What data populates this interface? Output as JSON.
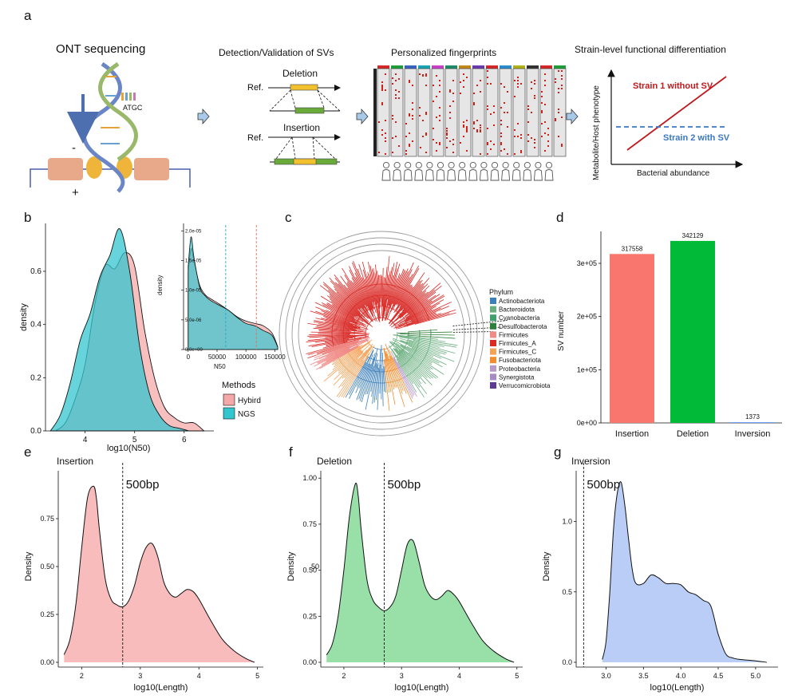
{
  "panel_labels": {
    "a": "a",
    "b": "b",
    "c": "c",
    "d": "d",
    "e": "e",
    "f": "f",
    "g": "g"
  },
  "panel_a": {
    "ont_title": "ONT sequencing",
    "atgc": "ATGC",
    "minus": "-",
    "plus": "+",
    "detect_title": "Detection/Validation of SVs",
    "deletion": "Deletion",
    "insertion": "Insertion",
    "ref1": "Ref.",
    "ref2": "Ref.",
    "fingerprint_title": "Personalized fingerprints",
    "strain_title": "Strain-level functional differentiation",
    "strain1": "Strain 1 without SV",
    "strain2": "Strain 2 with SV",
    "y_axis": "Metabolite/Host phenotype",
    "x_axis": "Bacterial abundance",
    "colors": {
      "deletion_bar": "#f2c12e",
      "ref_bar": "#6aaa3a",
      "strain1": "#c0181c",
      "strain2": "#3b78c4"
    }
  },
  "panel_b": {
    "type": "area",
    "xlabel": "log10(N50)",
    "ylabel": "density",
    "xticks": [
      "4",
      "5",
      "6"
    ],
    "yticks": [
      "0.0",
      "0.2",
      "0.4",
      "0.6"
    ],
    "xlim": [
      3.2,
      6.6
    ],
    "ylim": [
      0,
      0.78
    ],
    "legend_title": "Methods",
    "series": [
      {
        "name": "Hybird",
        "color": "#f4a9a8",
        "x": [
          3.4,
          3.6,
          3.8,
          4.0,
          4.2,
          4.4,
          4.6,
          4.8,
          5.0,
          5.2,
          5.4,
          5.6,
          5.8,
          6.0,
          6.2,
          6.4
        ],
        "y": [
          0.0,
          0.03,
          0.12,
          0.25,
          0.48,
          0.62,
          0.61,
          0.67,
          0.62,
          0.38,
          0.2,
          0.09,
          0.05,
          0.03,
          0.03,
          0.0
        ]
      },
      {
        "name": "NGS",
        "color": "#34c6cf",
        "x": [
          3.3,
          3.5,
          3.7,
          3.9,
          4.1,
          4.3,
          4.5,
          4.7,
          4.9,
          5.1,
          5.3,
          5.5,
          5.7,
          5.9,
          6.1
        ],
        "y": [
          0.0,
          0.06,
          0.18,
          0.34,
          0.44,
          0.58,
          0.66,
          0.76,
          0.6,
          0.32,
          0.14,
          0.06,
          0.02,
          0.01,
          0.0
        ]
      }
    ],
    "inset": {
      "xlabel": "N50",
      "ylabel": "density",
      "xticks": [
        "0",
        "50000",
        "100000",
        "150000"
      ],
      "yticks": [
        "0.0e+00",
        "5.0e-06",
        "1.0e-05",
        "1.5e-05",
        "2.0e-05"
      ],
      "xlim": [
        -8000,
        155000
      ],
      "ylim": [
        0,
        2.1e-05
      ],
      "vlines": [
        {
          "x": 65000,
          "color": "#2aa9c9"
        },
        {
          "x": 118000,
          "color": "#e4715c"
        }
      ],
      "hybird_x": [
        0,
        5000,
        10000,
        20000,
        30000,
        40000,
        55000,
        70000,
        85000,
        100000,
        115000,
        130000,
        145000,
        155000
      ],
      "hybird_y": [
        1.3e-05,
        1.7e-05,
        1.5e-05,
        1.08e-05,
        9.2e-06,
        8.5e-06,
        7.6e-06,
        6.6e-06,
        5.5e-06,
        4.8e-06,
        4.4e-06,
        4e-06,
        2.8e-06,
        5e-07
      ],
      "ngs_x": [
        0,
        5000,
        10000,
        20000,
        30000,
        40000,
        55000,
        70000,
        85000,
        100000,
        115000,
        130000,
        145000,
        155000
      ],
      "ngs_y": [
        1.4e-05,
        1.9e-05,
        1.56e-05,
        1.05e-05,
        9e-06,
        8.2e-06,
        7.4e-06,
        6.6e-06,
        5.4e-06,
        4.4e-06,
        4e-06,
        3.2e-06,
        2.4e-06,
        4e-07
      ]
    }
  },
  "panel_c": {
    "legend_title": "Phylum",
    "phyla": [
      {
        "name": "Actinobacteriota",
        "color": "#3c7fb9"
      },
      {
        "name": "Bacteroidota",
        "color": "#6aaf7f"
      },
      {
        "name": "Cyanobacteria",
        "color": "#3f9f6d"
      },
      {
        "name": "Desulfobacterota",
        "color": "#2f7e3c"
      },
      {
        "name": "Firmicutes",
        "color": "#f08a86"
      },
      {
        "name": "Firmicutes_A",
        "color": "#d92a26"
      },
      {
        "name": "Firmicutes_C",
        "color": "#f4a35a"
      },
      {
        "name": "Fusobacteriota",
        "color": "#f08d2c"
      },
      {
        "name": "Proteobacteria",
        "color": "#b69ac7"
      },
      {
        "name": "Synergistota",
        "color": "#a58bc2"
      },
      {
        "name": "Verrucomicrobiota",
        "color": "#5e3c91"
      }
    ]
  },
  "panel_d": {
    "type": "bar",
    "ylabel": "SV number",
    "categories": [
      "Insertion",
      "Deletion",
      "Inversion"
    ],
    "values": [
      317558,
      342129,
      1373
    ],
    "labels": [
      "317558",
      "342129",
      "1373"
    ],
    "colors": [
      "#f8766d",
      "#00ba38",
      "#619cff"
    ],
    "yticks": [
      "0e+00",
      "1e+05",
      "2e+05",
      "3e+05"
    ],
    "ylim": [
      0,
      360000
    ]
  },
  "panel_e": {
    "type": "area",
    "title": "Insertion",
    "xlabel": "log10(Length)",
    "ylabel": "Density",
    "xticks": [
      "2",
      "3",
      "4",
      "5"
    ],
    "yticks": [
      "0.00",
      "0.25",
      "0.50",
      "0.75"
    ],
    "xlim": [
      1.6,
      5.1
    ],
    "ylim": [
      0,
      1.0
    ],
    "vline": 2.7,
    "vline_label": "500bp",
    "color": "#f9bcbc",
    "x": [
      1.7,
      1.8,
      1.9,
      2.0,
      2.1,
      2.2,
      2.25,
      2.3,
      2.4,
      2.5,
      2.6,
      2.7,
      2.8,
      2.9,
      3.0,
      3.1,
      3.2,
      3.3,
      3.4,
      3.5,
      3.6,
      3.7,
      3.8,
      3.9,
      4.0,
      4.2,
      4.4,
      4.6,
      4.8,
      4.95
    ],
    "y": [
      0.04,
      0.12,
      0.3,
      0.6,
      0.86,
      0.92,
      0.86,
      0.7,
      0.44,
      0.33,
      0.3,
      0.29,
      0.32,
      0.4,
      0.52,
      0.6,
      0.62,
      0.55,
      0.42,
      0.36,
      0.34,
      0.36,
      0.38,
      0.37,
      0.33,
      0.22,
      0.12,
      0.06,
      0.02,
      0.0
    ]
  },
  "panel_f": {
    "type": "area",
    "title": "Deletion",
    "xlabel": "log10(Length)",
    "ylabel": "Density",
    "xticks": [
      "2",
      "3",
      "4",
      "5"
    ],
    "yticks": [
      "0.00",
      "0.25",
      "0.50",
      "0.75",
      "1.00"
    ],
    "stray_text": "50",
    "xlim": [
      1.6,
      5.1
    ],
    "ylim": [
      0,
      1.04
    ],
    "vline": 2.7,
    "vline_label": "500bp",
    "color": "#98dfa8",
    "x": [
      1.7,
      1.8,
      1.9,
      2.0,
      2.1,
      2.2,
      2.25,
      2.3,
      2.4,
      2.5,
      2.6,
      2.7,
      2.8,
      2.9,
      3.0,
      3.1,
      3.2,
      3.3,
      3.4,
      3.5,
      3.6,
      3.7,
      3.8,
      3.9,
      4.0,
      4.2,
      4.4,
      4.6,
      4.8,
      4.95
    ],
    "y": [
      0.04,
      0.1,
      0.25,
      0.5,
      0.8,
      0.97,
      0.9,
      0.72,
      0.45,
      0.34,
      0.3,
      0.28,
      0.3,
      0.36,
      0.5,
      0.64,
      0.66,
      0.55,
      0.42,
      0.36,
      0.34,
      0.36,
      0.39,
      0.37,
      0.33,
      0.22,
      0.12,
      0.06,
      0.02,
      0.0
    ]
  },
  "panel_g": {
    "type": "area",
    "title": "Inversion",
    "xlabel": "log10(Length)",
    "ylabel": "Density",
    "xticks": [
      "3.0",
      "3.5",
      "4.0",
      "4.5",
      "5.0"
    ],
    "yticks": [
      "0.0",
      "0.5",
      "1.0"
    ],
    "xlim": [
      2.6,
      5.3
    ],
    "ylim": [
      0,
      1.36
    ],
    "vline": 2.7,
    "vline_label": "500bp",
    "color": "#b9cdf7",
    "x": [
      2.95,
      3.0,
      3.05,
      3.1,
      3.15,
      3.2,
      3.25,
      3.3,
      3.35,
      3.4,
      3.5,
      3.6,
      3.7,
      3.8,
      3.9,
      4.0,
      4.1,
      4.2,
      4.3,
      4.4,
      4.5,
      4.6,
      4.7,
      4.8,
      5.0,
      5.15
    ],
    "y": [
      0.02,
      0.15,
      0.5,
      0.95,
      1.2,
      1.28,
      1.12,
      0.88,
      0.66,
      0.56,
      0.56,
      0.62,
      0.6,
      0.56,
      0.56,
      0.55,
      0.5,
      0.48,
      0.44,
      0.4,
      0.2,
      0.06,
      0.03,
      0.02,
      0.01,
      0.0
    ]
  }
}
